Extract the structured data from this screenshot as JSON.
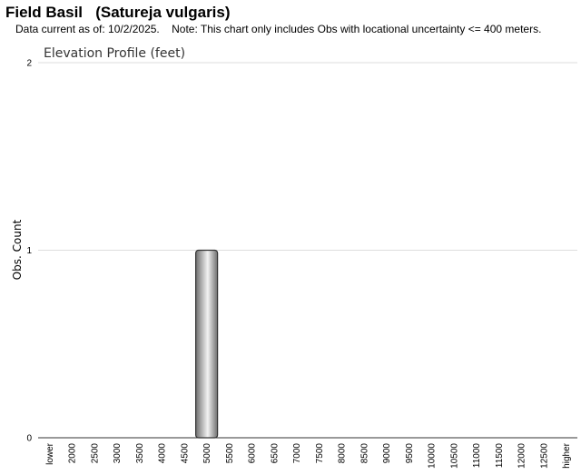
{
  "header": {
    "title": "Field Basil   (Satureja vulgaris)",
    "note": "Data current as of: 10/2/2025.    Note: This chart only includes Obs with locational uncertainty <= 400 meters."
  },
  "chart_data": {
    "type": "bar",
    "title": "Elevation Profile (feet)",
    "xlabel": "",
    "ylabel": "Obs. Count",
    "categories": [
      "lower",
      "2000",
      "2500",
      "3000",
      "3500",
      "4000",
      "4500",
      "5000",
      "5500",
      "6000",
      "6500",
      "7000",
      "7500",
      "8000",
      "8500",
      "9000",
      "9500",
      "10000",
      "10500",
      "11000",
      "11500",
      "12000",
      "12500",
      "higher"
    ],
    "values": [
      0,
      0,
      0,
      0,
      0,
      0,
      0,
      1,
      0,
      0,
      0,
      0,
      0,
      0,
      0,
      0,
      0,
      0,
      0,
      0,
      0,
      0,
      0,
      0
    ],
    "ylim": [
      0,
      2
    ],
    "yticks": [
      0,
      1,
      2
    ],
    "grid": true,
    "colors": {
      "bar_light": "#f2f2f2",
      "bar_dark": "#6e6e6e",
      "bar_stroke": "#333333",
      "grid": "#dddddd"
    }
  }
}
